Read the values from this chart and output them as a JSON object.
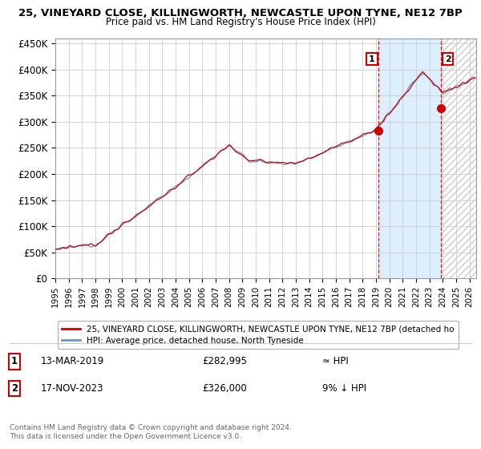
{
  "title_line1": "25, VINEYARD CLOSE, KILLINGWORTH, NEWCASTLE UPON TYNE, NE12 7BP",
  "title_line2": "Price paid vs. HM Land Registry's House Price Index (HPI)",
  "ylabel_ticks": [
    "£0",
    "£50K",
    "£100K",
    "£150K",
    "£200K",
    "£250K",
    "£300K",
    "£350K",
    "£400K",
    "£450K"
  ],
  "ytick_values": [
    0,
    50000,
    100000,
    150000,
    200000,
    250000,
    300000,
    350000,
    400000,
    450000
  ],
  "ylim": [
    0,
    460000
  ],
  "xlim_start": 1995.0,
  "xlim_end": 2026.5,
  "hpi_color": "#6699cc",
  "price_color": "#cc0000",
  "background_color": "#ffffff",
  "grid_color": "#cccccc",
  "shade_color": "#ddeeff",
  "sale1_year": 2019.2,
  "sale1_price": 282995,
  "sale2_year": 2023.88,
  "sale2_price": 326000,
  "legend_label1": "25, VINEYARD CLOSE, KILLINGWORTH, NEWCASTLE UPON TYNE, NE12 7BP (detached ho",
  "legend_label2": "HPI: Average price, detached house, North Tyneside",
  "note1_num": "1",
  "note1_date": "13-MAR-2019",
  "note1_price": "£282,995",
  "note1_rel": "≈ HPI",
  "note2_num": "2",
  "note2_date": "17-NOV-2023",
  "note2_price": "£326,000",
  "note2_rel": "9% ↓ HPI",
  "footer": "Contains HM Land Registry data © Crown copyright and database right 2024.\nThis data is licensed under the Open Government Licence v3.0."
}
